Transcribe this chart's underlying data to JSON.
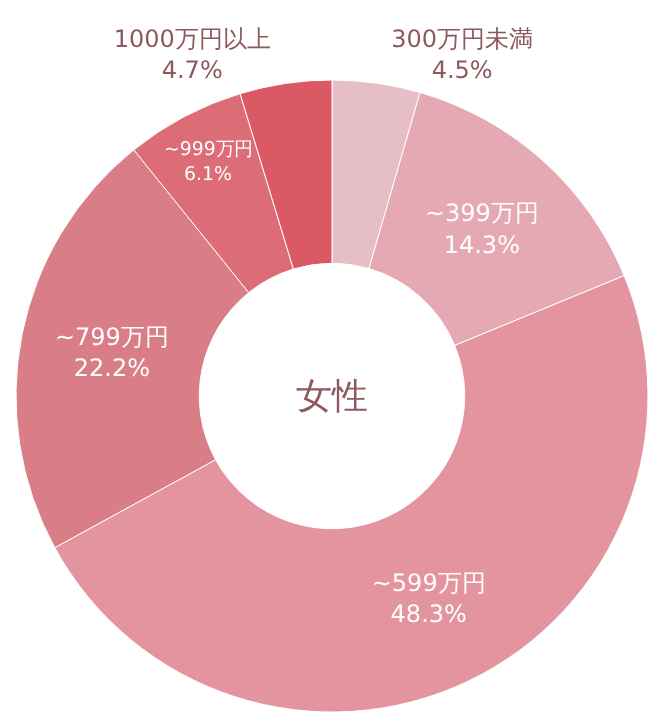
{
  "chart_data": {
    "type": "donut",
    "title": "女性",
    "categories": [
      "300万円未満",
      "~399万円",
      "~599万円",
      "~799万円",
      "~999万円",
      "1000万円以上"
    ],
    "values": [
      4.5,
      14.3,
      48.3,
      22.2,
      6.1,
      4.7
    ],
    "value_labels": [
      "4.5%",
      "14.3%",
      "48.3%",
      "22.2%",
      "6.1%",
      "4.7%"
    ],
    "colors": [
      "#e6bec6",
      "#e4a9b3",
      "#e4949e",
      "#d97d86",
      "#dc6c76",
      "#db5865"
    ],
    "legend": false
  }
}
